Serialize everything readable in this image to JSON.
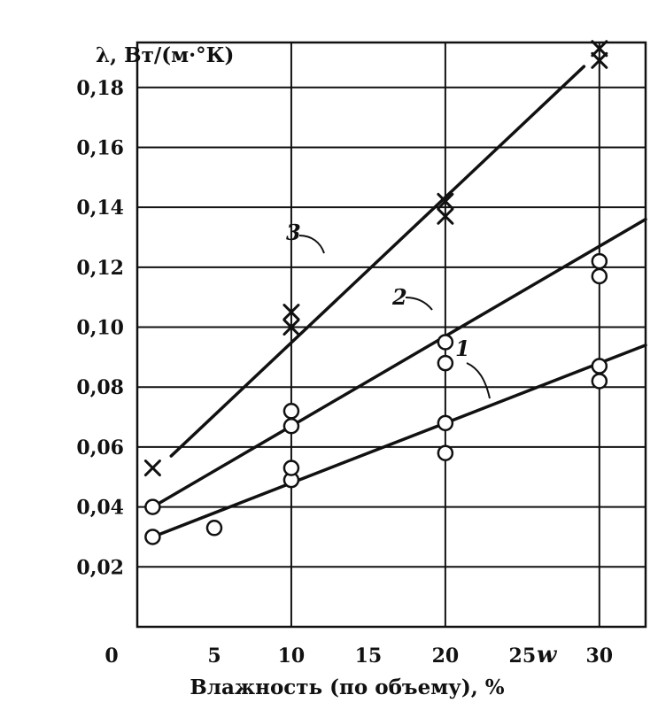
{
  "chart_data": {
    "type": "scatter",
    "title": "",
    "ylabel": "λ, Вт/(м·°К)",
    "xlabel": "Влажность (по объему), %",
    "x_axis_letter": "w",
    "xlim": [
      0,
      33
    ],
    "ylim": [
      0,
      0.195
    ],
    "x_ticks": [
      0,
      5,
      10,
      15,
      20,
      25,
      30
    ],
    "x_tick_labels": [
      "0",
      "5",
      "10",
      "15",
      "20",
      "25",
      "30"
    ],
    "y_ticks": [
      0.02,
      0.04,
      0.06,
      0.08,
      0.1,
      0.12,
      0.14,
      0.16,
      0.18
    ],
    "y_tick_labels": [
      "0,02",
      "0,04",
      "0,06",
      "0,08",
      "0,10",
      "0,12",
      "0,14",
      "0,16",
      "0,18"
    ],
    "grid": true,
    "series": [
      {
        "name": "1",
        "marker": "circle",
        "points": [
          [
            1,
            0.03
          ],
          [
            5,
            0.033
          ],
          [
            10,
            0.049
          ],
          [
            10,
            0.053
          ],
          [
            20,
            0.058
          ],
          [
            20,
            0.068
          ],
          [
            30,
            0.082
          ],
          [
            30,
            0.087
          ]
        ],
        "fit_line": [
          [
            1,
            0.03
          ],
          [
            33,
            0.094
          ]
        ]
      },
      {
        "name": "2",
        "marker": "circle",
        "points": [
          [
            1,
            0.04
          ],
          [
            10,
            0.067
          ],
          [
            10,
            0.072
          ],
          [
            20,
            0.088
          ],
          [
            20,
            0.095
          ],
          [
            30,
            0.117
          ],
          [
            30,
            0.122
          ]
        ],
        "fit_line": [
          [
            1,
            0.04
          ],
          [
            33,
            0.136
          ]
        ]
      },
      {
        "name": "3",
        "marker": "cross",
        "points": [
          [
            1,
            0.053
          ],
          [
            10,
            0.1
          ],
          [
            10,
            0.105
          ],
          [
            20,
            0.137
          ],
          [
            20,
            0.142
          ],
          [
            30,
            0.189
          ],
          [
            30,
            0.193
          ]
        ],
        "fit_line": [
          [
            2.2,
            0.057
          ],
          [
            29,
            0.187
          ]
        ]
      }
    ]
  }
}
